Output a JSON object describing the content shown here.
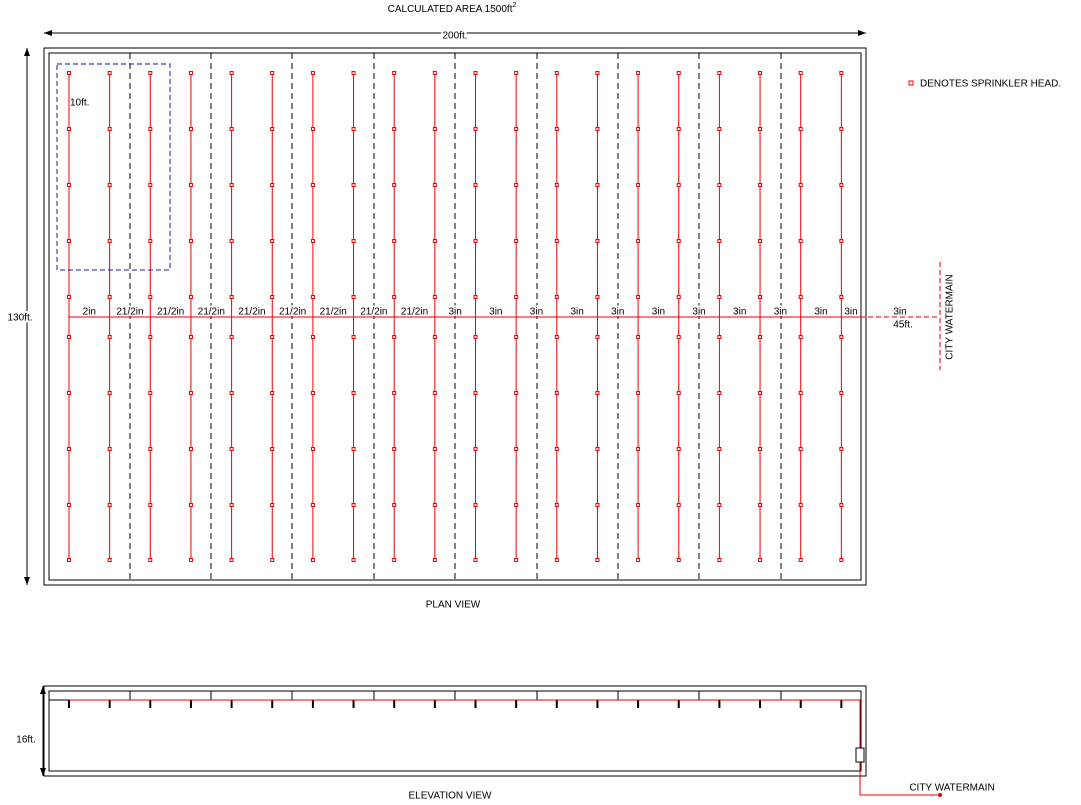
{
  "plan": {
    "area_label": "CALCULATED AREA 1500ft",
    "area_exponent": "2",
    "width_label": "200ft.",
    "height_label": "130ft.",
    "zone_label": "10ft.",
    "legend": "DENOTES SPRINKLER HEAD.",
    "watermain": "CITY WATERMAIN",
    "main_length": "45ft.",
    "caption": "PLAN VIEW",
    "pipe_sizes": [
      "2in",
      "21/2in",
      "21/2in",
      "21/2in",
      "21/2in",
      "21/2in",
      "21/2in",
      "21/2in",
      "21/2in",
      "3in",
      "3in",
      "3in",
      "3in",
      "3in",
      "3in",
      "3in",
      "3in",
      "3in",
      "3in",
      "3in",
      "3in"
    ]
  },
  "elevation": {
    "height_label": "16ft.",
    "watermain": "CITY WATERMAIN",
    "caption": "ELEVATION VIEW"
  }
}
